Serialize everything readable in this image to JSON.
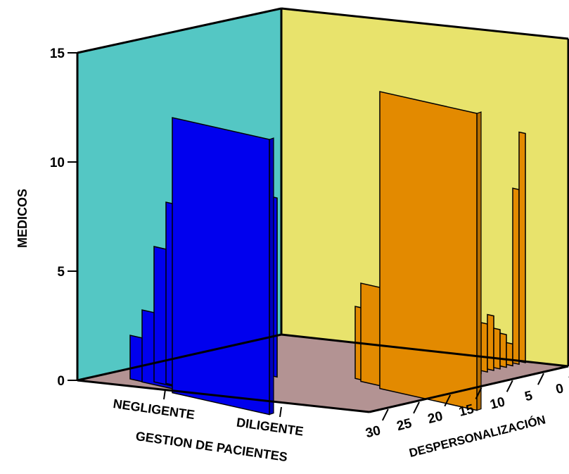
{
  "chart_data": {
    "type": "bar",
    "subtype": "3d-clustered-bar",
    "title": "",
    "ylabel": "MEDICOS",
    "xlabel": "GESTION DE PACIENTES",
    "zlabel": "DESPERSONALIZACIÓN",
    "ylim": [
      0,
      15
    ],
    "yticks": [
      "0",
      "5",
      "10",
      "15"
    ],
    "categories": [
      "NEGLIGENTE",
      "DILIGENTE"
    ],
    "depth_ticks": [
      "30",
      "25",
      "20",
      "15",
      "10",
      "5",
      "0"
    ],
    "grid": false,
    "legend": "none",
    "series": [
      {
        "category": "NEGLIGENTE",
        "color": "#0000EE",
        "bars": [
          {
            "depth_value": 30,
            "value": 2.0
          },
          {
            "depth_value": 27,
            "value": 3.3
          },
          {
            "depth_value": 22,
            "value": 6.2
          },
          {
            "depth_value": 18,
            "value": 8.3
          },
          {
            "depth_value": 15,
            "value": 12.6
          }
        ],
        "minor_bars": [
          {
            "depth_value": 12,
            "value": 0.5
          },
          {
            "depth_value": 10,
            "value": 1.3
          },
          {
            "depth_value": 8,
            "value": 2.0
          },
          {
            "depth_value": 6,
            "value": 3.0
          },
          {
            "depth_value": 3,
            "value": 5.0
          },
          {
            "depth_value": 0,
            "value": 8.2
          }
        ]
      },
      {
        "category": "DILIGENTE",
        "color": "#E38A00",
        "bars": [
          {
            "depth_value": 28,
            "value": 3.3
          },
          {
            "depth_value": 25,
            "value": 4.5
          },
          {
            "depth_value": 13,
            "value": 13.6
          }
        ],
        "minor_bars": [
          {
            "depth_value": 22,
            "value": 2.3
          },
          {
            "depth_value": 20,
            "value": 2.8
          },
          {
            "depth_value": 17,
            "value": 5.0
          },
          {
            "depth_value": 11,
            "value": 0.7
          },
          {
            "depth_value": 9,
            "value": 2.2
          },
          {
            "depth_value": 7,
            "value": 2.5
          },
          {
            "depth_value": 5,
            "value": 1.8
          },
          {
            "depth_value": 3,
            "value": 1.5
          },
          {
            "depth_value": 1,
            "value": 1.0
          },
          {
            "depth_value": 8,
            "value": 8.0
          },
          {
            "depth_value": 6,
            "value": 10.5
          }
        ]
      }
    ],
    "colors": {
      "left_wall": "#54C7C4",
      "back_wall": "#E8E36C",
      "floor": "#B39393",
      "negligente": "#0000EE",
      "diligente": "#E38A00"
    }
  }
}
